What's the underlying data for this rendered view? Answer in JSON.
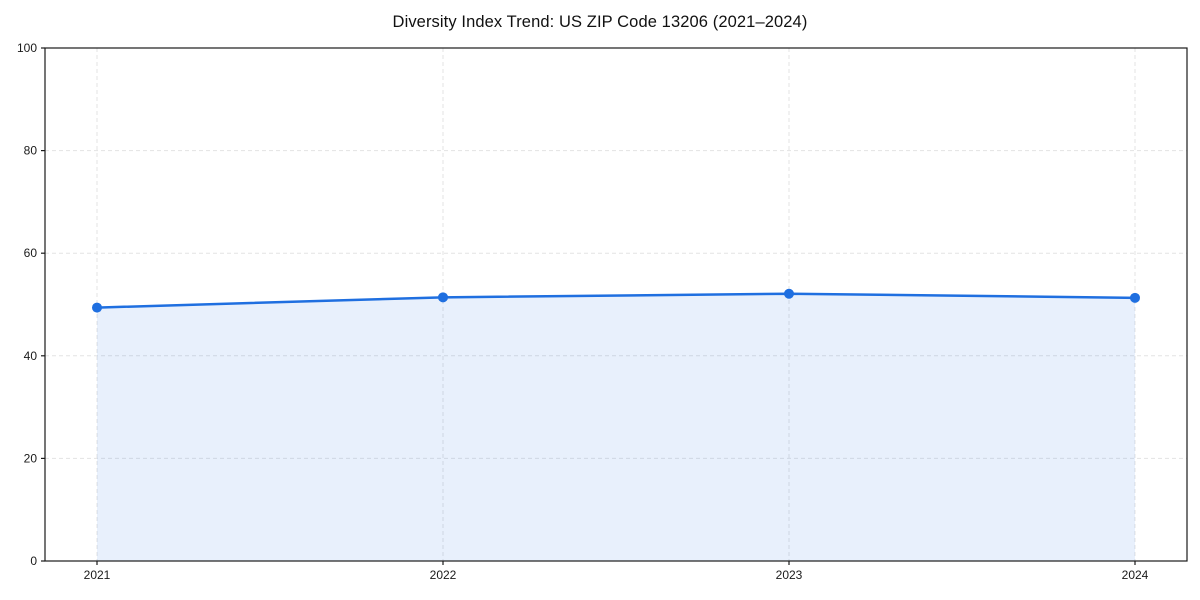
{
  "chart_data": {
    "type": "line",
    "title": "Diversity Index Trend: US ZIP Code 13206 (2021–2024)",
    "x": [
      2021,
      2022,
      2023,
      2024
    ],
    "xtick_labels": [
      "2021",
      "2022",
      "2023",
      "2024"
    ],
    "series": [
      {
        "name": "Diversity Index",
        "values": [
          49.4,
          51.4,
          52.1,
          51.3
        ]
      }
    ],
    "xlabel": "",
    "ylabel": "",
    "ylim": [
      0,
      100
    ],
    "yticks": [
      0,
      20,
      40,
      60,
      80,
      100
    ],
    "grid": {
      "show": true,
      "style": "dashed",
      "color": "#e3e3e3"
    },
    "legend": "none",
    "area_fill": true,
    "marker": "circle",
    "colors": {
      "line": "#1f6fe0",
      "marker": "#1f6fe0",
      "fill": "rgba(31,111,224,0.10)",
      "spine": "#1a1a1a",
      "background": "#ffffff"
    }
  }
}
